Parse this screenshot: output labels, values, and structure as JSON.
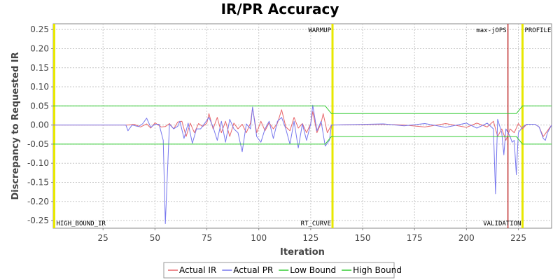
{
  "chart_data": {
    "type": "line",
    "title": "IR/PR Accuracy",
    "xlabel": "Iteration",
    "ylabel": "Discrepancy to Requested IR",
    "xlim": [
      1,
      241
    ],
    "ylim": [
      -0.27,
      0.265
    ],
    "xticks": [
      25,
      50,
      75,
      100,
      125,
      150,
      175,
      200,
      225
    ],
    "yticks": [
      -0.25,
      -0.2,
      -0.15,
      -0.1,
      -0.05,
      0.0,
      0.05,
      0.1,
      0.15,
      0.2,
      0.25
    ],
    "grid": true,
    "legend_position": "bottom",
    "markers": [
      {
        "x": 1.5,
        "label": "HIGH_BOUND_IR",
        "color": "#e8e800",
        "label_position": "bottom"
      },
      {
        "x": 135.5,
        "label": "WARMUP",
        "color": "#e8e800",
        "label_position": "top"
      },
      {
        "x": 135.5,
        "label": "RT_CURVE",
        "color": "#e8e800",
        "label_position": "bottom"
      },
      {
        "x": 220,
        "label": "max-jOPS",
        "color": "#b00000",
        "label_position": "top"
      },
      {
        "x": 227,
        "label": "VALIDATION",
        "color": "#e8e800",
        "label_position": "bottom"
      },
      {
        "x": 227,
        "label": "PROFILE",
        "color": "#e8e800",
        "label_position": "top"
      }
    ],
    "series": [
      {
        "name": "Actual IR",
        "color": "#e8666b",
        "points": [
          [
            1,
            0
          ],
          [
            37,
            0
          ],
          [
            40,
            0.002
          ],
          [
            43,
            -0.005
          ],
          [
            46,
            0.003
          ],
          [
            48,
            -0.008
          ],
          [
            50,
            0.006
          ],
          [
            53,
            -0.005
          ],
          [
            55,
            -0.004
          ],
          [
            57,
            0.004
          ],
          [
            59,
            -0.01
          ],
          [
            61,
            0.008
          ],
          [
            63,
            0.01
          ],
          [
            65,
            -0.03
          ],
          [
            67,
            0.005
          ],
          [
            69,
            -0.02
          ],
          [
            71,
            0.004
          ],
          [
            73,
            -0.004
          ],
          [
            75,
            0.005
          ],
          [
            76,
            0.03
          ],
          [
            78,
            -0.01
          ],
          [
            80,
            0.02
          ],
          [
            82,
            -0.02
          ],
          [
            84,
            0.01
          ],
          [
            86,
            -0.03
          ],
          [
            88,
            0.005
          ],
          [
            90,
            -0.01
          ],
          [
            92,
            0.002
          ],
          [
            94,
            -0.02
          ],
          [
            96,
            0.005
          ],
          [
            97,
            0.045
          ],
          [
            99,
            -0.02
          ],
          [
            101,
            0.01
          ],
          [
            103,
            -0.015
          ],
          [
            105,
            0.006
          ],
          [
            107,
            -0.01
          ],
          [
            109,
            0.005
          ],
          [
            111,
            0.04
          ],
          [
            113,
            -0.005
          ],
          [
            115,
            -0.015
          ],
          [
            117,
            0.02
          ],
          [
            119,
            -0.008
          ],
          [
            121,
            0.004
          ],
          [
            123,
            -0.02
          ],
          [
            125,
            0.004
          ],
          [
            126,
            0.035
          ],
          [
            128,
            -0.02
          ],
          [
            130,
            0.005
          ],
          [
            131,
            0.03
          ],
          [
            133,
            -0.02
          ],
          [
            135,
            0
          ],
          [
            160,
            0.002
          ],
          [
            170,
            0
          ],
          [
            180,
            -0.005
          ],
          [
            190,
            0.004
          ],
          [
            200,
            -0.006
          ],
          [
            205,
            0.005
          ],
          [
            210,
            -0.005
          ],
          [
            213,
            0.01
          ],
          [
            215,
            -0.03
          ],
          [
            217,
            -0.01
          ],
          [
            219,
            -0.04
          ],
          [
            221,
            -0.01
          ],
          [
            223,
            -0.02
          ],
          [
            225,
            0.004
          ],
          [
            227,
            -0.01
          ],
          [
            229,
            0.002
          ],
          [
            233,
            0.002
          ],
          [
            235,
            -0.005
          ],
          [
            237,
            -0.03
          ],
          [
            239,
            -0.015
          ],
          [
            241,
            0
          ]
        ]
      },
      {
        "name": "Actual PR",
        "color": "#7777ee",
        "points": [
          [
            1,
            0
          ],
          [
            36,
            0
          ],
          [
            37,
            -0.015
          ],
          [
            39,
            0
          ],
          [
            42,
            -0.004
          ],
          [
            44,
            0.003
          ],
          [
            46,
            0.018
          ],
          [
            48,
            -0.006
          ],
          [
            50,
            0.002
          ],
          [
            52,
            0.002
          ],
          [
            54,
            -0.04
          ],
          [
            55,
            -0.258
          ],
          [
            57,
            0.002
          ],
          [
            59,
            -0.01
          ],
          [
            61,
            -0.003
          ],
          [
            62,
            0.01
          ],
          [
            64,
            -0.035
          ],
          [
            66,
            0.005
          ],
          [
            68,
            -0.048
          ],
          [
            70,
            -0.01
          ],
          [
            72,
            -0.01
          ],
          [
            74,
            0.005
          ],
          [
            76,
            0.02
          ],
          [
            78,
            -0.005
          ],
          [
            80,
            -0.04
          ],
          [
            82,
            0.01
          ],
          [
            84,
            -0.045
          ],
          [
            86,
            0.015
          ],
          [
            88,
            -0.01
          ],
          [
            90,
            -0.02
          ],
          [
            92,
            -0.07
          ],
          [
            94,
            0.003
          ],
          [
            96,
            -0.01
          ],
          [
            97,
            0.047
          ],
          [
            99,
            -0.03
          ],
          [
            101,
            -0.045
          ],
          [
            103,
            -0.01
          ],
          [
            105,
            0.01
          ],
          [
            107,
            -0.035
          ],
          [
            109,
            0.01
          ],
          [
            111,
            0.02
          ],
          [
            113,
            -0.01
          ],
          [
            115,
            -0.05
          ],
          [
            117,
            0.01
          ],
          [
            119,
            -0.06
          ],
          [
            121,
            0.003
          ],
          [
            123,
            -0.04
          ],
          [
            125,
            0.003
          ],
          [
            126,
            0.052
          ],
          [
            128,
            -0.015
          ],
          [
            130,
            0.01
          ],
          [
            132,
            -0.055
          ],
          [
            134,
            -0.04
          ],
          [
            135,
            0
          ],
          [
            160,
            0.003
          ],
          [
            170,
            -0.002
          ],
          [
            180,
            0.004
          ],
          [
            190,
            -0.006
          ],
          [
            200,
            0.005
          ],
          [
            205,
            -0.008
          ],
          [
            210,
            0.005
          ],
          [
            213,
            -0.01
          ],
          [
            214,
            -0.18
          ],
          [
            215,
            0.015
          ],
          [
            217,
            -0.02
          ],
          [
            218,
            -0.078
          ],
          [
            219,
            -0.01
          ],
          [
            221,
            -0.03
          ],
          [
            222,
            -0.045
          ],
          [
            223,
            -0.04
          ],
          [
            224,
            -0.13
          ],
          [
            225,
            -0.02
          ],
          [
            227,
            -0.005
          ],
          [
            229,
            0.002
          ],
          [
            233,
            0.002
          ],
          [
            235,
            -0.005
          ],
          [
            237,
            -0.035
          ],
          [
            238,
            -0.04
          ],
          [
            239,
            -0.02
          ],
          [
            241,
            0
          ]
        ]
      },
      {
        "name": "Low Bound",
        "color": "#33cc33",
        "points": [
          [
            1,
            -0.05
          ],
          [
            132,
            -0.05
          ],
          [
            135,
            -0.03
          ],
          [
            220,
            -0.03
          ],
          [
            224,
            -0.03
          ],
          [
            227,
            -0.05
          ],
          [
            241,
            -0.05
          ]
        ]
      },
      {
        "name": "High Bound",
        "color": "#33cc33",
        "points": [
          [
            1,
            0.05
          ],
          [
            132,
            0.05
          ],
          [
            135,
            0.03
          ],
          [
            220,
            0.03
          ],
          [
            224,
            0.03
          ],
          [
            227,
            0.05
          ],
          [
            241,
            0.05
          ]
        ]
      }
    ]
  }
}
